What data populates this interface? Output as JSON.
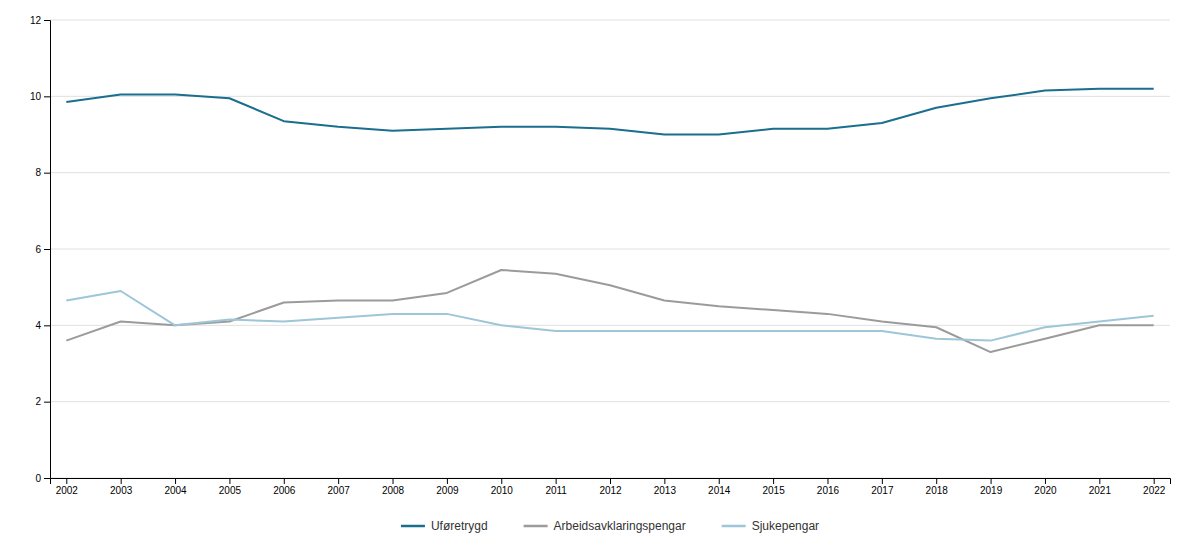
{
  "chart_data": {
    "type": "line",
    "x": [
      2002,
      2003,
      2004,
      2005,
      2006,
      2007,
      2008,
      2009,
      2010,
      2011,
      2012,
      2013,
      2014,
      2015,
      2016,
      2017,
      2018,
      2019,
      2020,
      2021,
      2022
    ],
    "series": [
      {
        "name": "Uføretrygd",
        "color": "#1a6e8e",
        "values": [
          9.85,
          10.05,
          10.05,
          9.95,
          9.35,
          9.2,
          9.1,
          9.15,
          9.2,
          9.2,
          9.15,
          9.0,
          9.0,
          9.15,
          9.15,
          9.3,
          9.7,
          9.95,
          10.15,
          10.2,
          10.2
        ]
      },
      {
        "name": "Arbeidsavklaringspengar",
        "color": "#9b9b9b",
        "values": [
          3.6,
          4.1,
          4.0,
          4.1,
          4.6,
          4.65,
          4.65,
          4.85,
          5.45,
          5.35,
          5.05,
          4.65,
          4.5,
          4.4,
          4.3,
          4.1,
          3.95,
          3.3,
          3.65,
          4.0,
          4.0
        ]
      },
      {
        "name": "Sjukepengar",
        "color": "#9dc6d8",
        "values": [
          4.65,
          4.9,
          4.0,
          4.15,
          4.1,
          4.2,
          4.3,
          4.3,
          4.0,
          3.85,
          3.85,
          3.85,
          3.85,
          3.85,
          3.85,
          3.85,
          3.65,
          3.6,
          3.95,
          4.1,
          4.25
        ]
      }
    ],
    "xlim": [
      2001.7,
      2022.3
    ],
    "xticks": [
      2002,
      2003,
      2004,
      2005,
      2006,
      2007,
      2008,
      2009,
      2010,
      2011,
      2012,
      2013,
      2014,
      2015,
      2016,
      2017,
      2018,
      2019,
      2020,
      2021,
      2022
    ],
    "ylim": [
      0,
      12
    ],
    "yticks": [
      0,
      2,
      4,
      6,
      8,
      10,
      12
    ],
    "grid": true,
    "legend": "bottom"
  }
}
